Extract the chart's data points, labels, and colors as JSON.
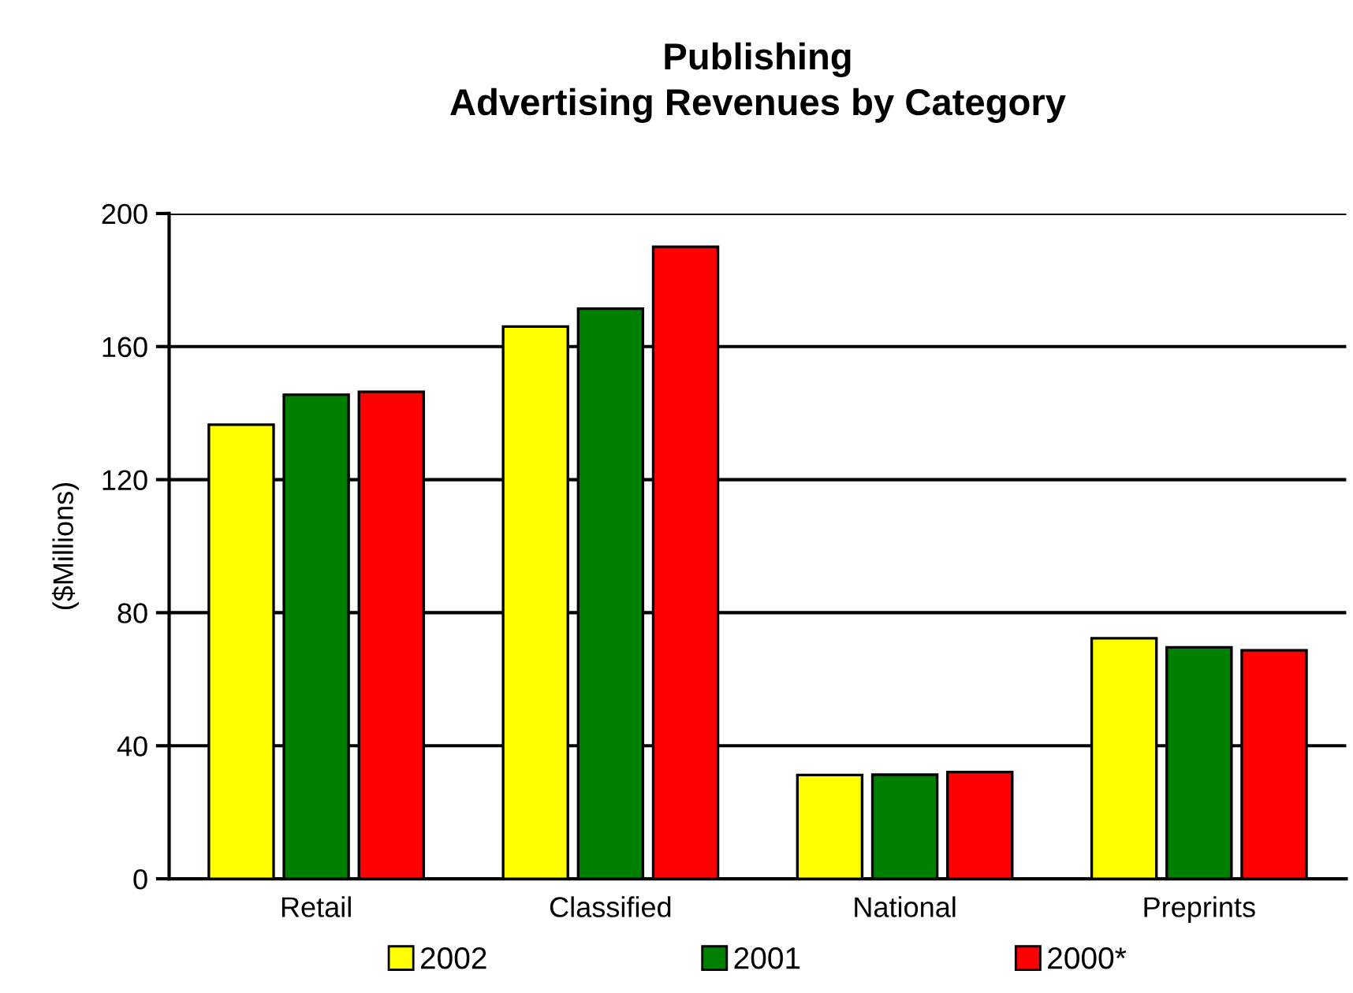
{
  "chart_data": {
    "type": "bar",
    "title": "Publishing\nAdvertising Revenues by Category",
    "ylabel": "($Millions)",
    "categories": [
      "Retail",
      "Classified",
      "National",
      "Preprints"
    ],
    "series": [
      {
        "name": "2002",
        "color": "#ffff00",
        "values": [
          136.5,
          166,
          31.2,
          72.3
        ]
      },
      {
        "name": "2001",
        "color": "#008000",
        "values": [
          145.5,
          171.4,
          31.3,
          69.6
        ]
      },
      {
        "name": "2000*",
        "color": "#ff0000",
        "values": [
          146.4,
          190,
          32.1,
          68.7
        ]
      }
    ],
    "ylim": [
      0,
      200
    ],
    "yticks": [
      0,
      40,
      80,
      120,
      160,
      200
    ],
    "grid": "y",
    "legend": "bottom"
  }
}
